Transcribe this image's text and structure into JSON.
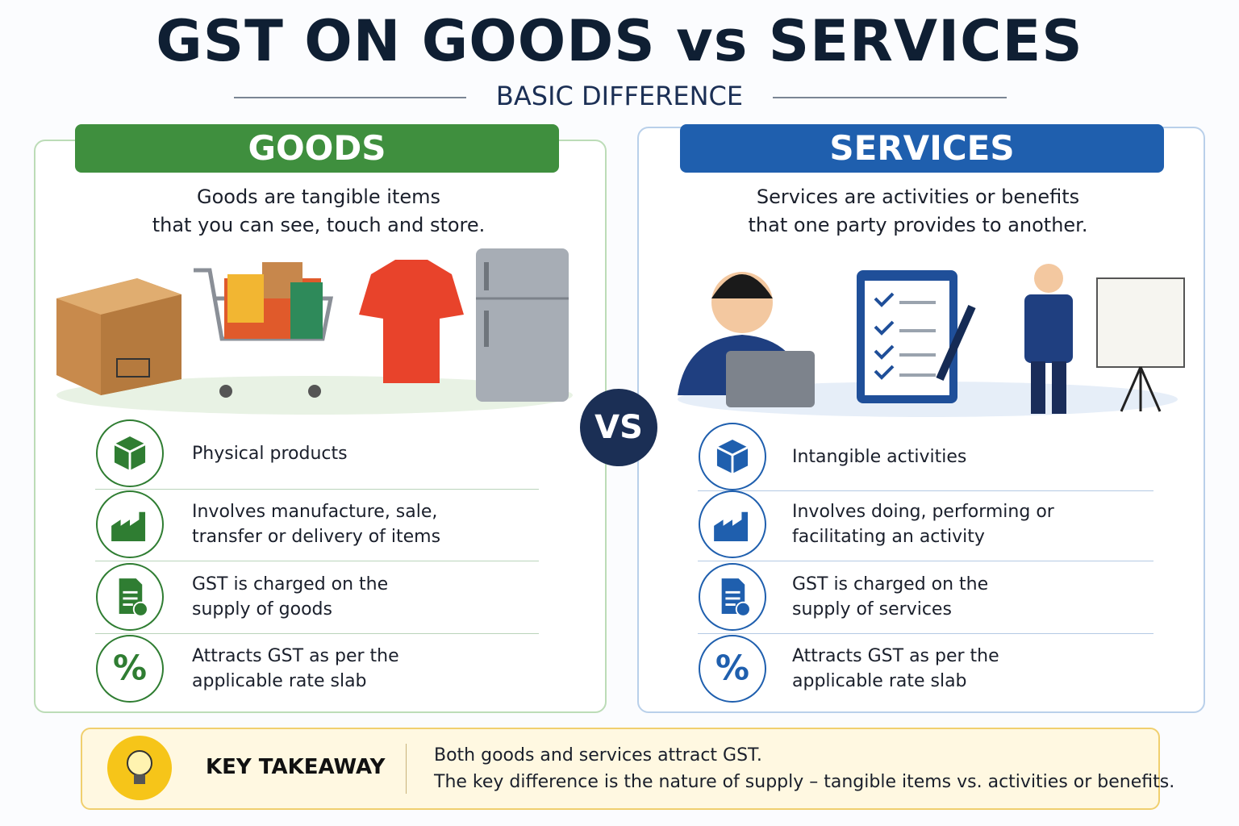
{
  "title": "GST ON GOODS vs SERVICES",
  "subtitle": "BASIC DIFFERENCE",
  "goods": {
    "heading": "GOODS",
    "description": [
      "Goods are tangible items",
      "that you can see, touch and store."
    ],
    "items": [
      [
        "Physical products"
      ],
      [
        "Involves manufacture, sale,",
        "transfer or delivery of items"
      ],
      [
        "GST is charged on the",
        "supply of goods"
      ],
      [
        "Attracts GST as per the",
        "applicable rate slab"
      ]
    ]
  },
  "vs": "VS",
  "services": {
    "heading": "SERVICES",
    "description": [
      "Services are activities or benefits",
      "that one party provides to another."
    ],
    "items": [
      [
        "Intangible activities"
      ],
      [
        "Involves doing, performing or",
        "facilitating an activity"
      ],
      [
        "GST is charged on the",
        "supply of services"
      ],
      [
        "Attracts GST as per the",
        "applicable rate slab"
      ]
    ]
  },
  "takeaway": {
    "label": "KEY TAKEAWAY",
    "lines": [
      "Both goods and services attract GST.",
      "The key difference is the nature of supply – tangible items vs. activities or benefits."
    ]
  }
}
